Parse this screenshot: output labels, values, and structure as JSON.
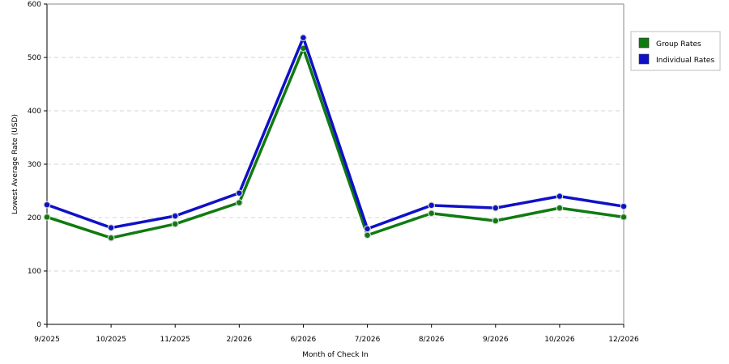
{
  "chart_data": {
    "type": "line",
    "categories": [
      "9/2025",
      "10/2025",
      "11/2025",
      "2/2026",
      "6/2026",
      "7/2026",
      "8/2026",
      "9/2026",
      "10/2026",
      "12/2026"
    ],
    "series": [
      {
        "name": "Group Rates",
        "color": "#107a10",
        "values": [
          201,
          162,
          188,
          228,
          517,
          167,
          208,
          194,
          218,
          201
        ]
      },
      {
        "name": "Individual Rates",
        "color": "#1010c8",
        "values": [
          224,
          181,
          203,
          246,
          537,
          179,
          223,
          218,
          240,
          221
        ]
      }
    ],
    "xlabel": "Month of Check In",
    "ylabel": "Lowest Average Rate (USD)",
    "ylim": [
      0,
      600
    ],
    "yticks": [
      "0",
      "100",
      "200",
      "300",
      "400",
      "500",
      "600"
    ],
    "grid": "horizontal dashed",
    "legend_position": "right"
  }
}
